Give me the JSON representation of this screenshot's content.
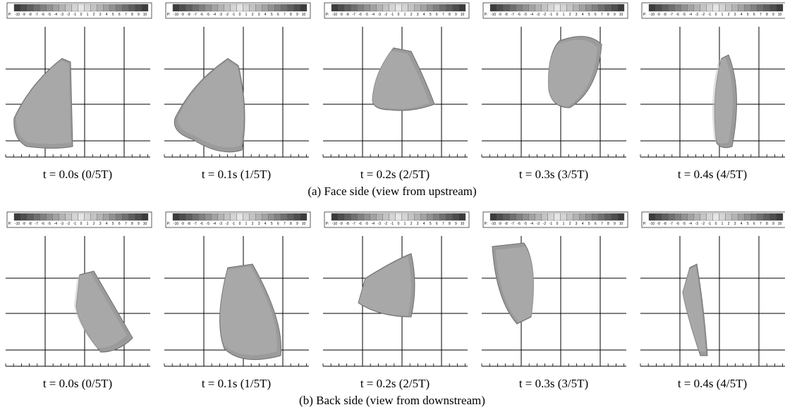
{
  "colorbar": {
    "prefix": "P:",
    "ticks": [
      -10,
      -9,
      -8,
      -7,
      -6,
      -5,
      -4,
      -3,
      -2,
      -1,
      0,
      1,
      2,
      3,
      4,
      5,
      6,
      7,
      8,
      9,
      10
    ]
  },
  "rows": [
    {
      "caption": "(a) Face side (view from upstream)",
      "panels": [
        {
          "label": "t = 0.0s (0/5T)"
        },
        {
          "label": "t = 0.1s (1/5T)"
        },
        {
          "label": "t = 0.2s (2/5T)"
        },
        {
          "label": "t = 0.3s (3/5T)"
        },
        {
          "label": "t = 0.4s (4/5T)"
        }
      ]
    },
    {
      "caption": "(b) Back side (view from downstream)",
      "panels": [
        {
          "label": "t = 0.0s (0/5T)"
        },
        {
          "label": "t = 0.1s (1/5T)"
        },
        {
          "label": "t = 0.2s (2/5T)"
        },
        {
          "label": "t = 0.3s (3/5T)"
        },
        {
          "label": "t = 0.4s (4/5T)"
        }
      ]
    }
  ]
}
